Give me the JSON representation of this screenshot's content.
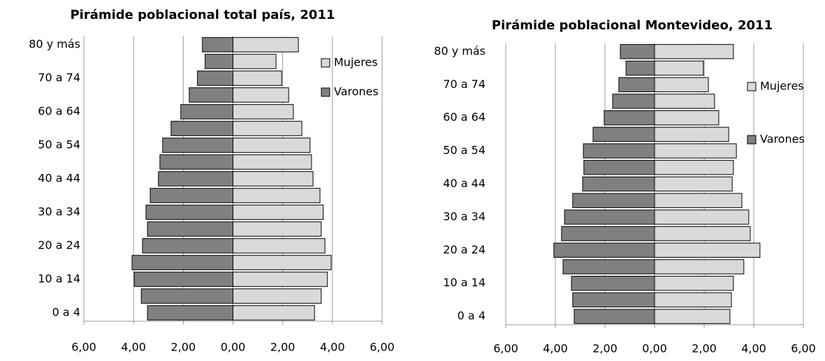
{
  "chart_data": [
    {
      "type": "pyramid",
      "title": "Pirámide poblacional total país, 2011",
      "categories": [
        "0 a 4",
        null,
        "10 a 14",
        null,
        "20 a 24",
        null,
        "30 a 34",
        null,
        "40 a 44",
        null,
        "50 a 54",
        null,
        "60 a 64",
        null,
        "70 a 74",
        null,
        "80 y más"
      ],
      "series": [
        {
          "name": "Mujeres",
          "color": "#d9d9d9",
          "values": [
            3.28,
            3.55,
            3.8,
            3.95,
            3.7,
            3.55,
            3.63,
            3.5,
            3.22,
            3.16,
            3.1,
            2.77,
            2.43,
            2.24,
            1.96,
            1.73,
            2.63
          ]
        },
        {
          "name": "Varones",
          "color": "#808080",
          "values": [
            -3.44,
            -3.69,
            -3.97,
            -4.06,
            -3.64,
            -3.44,
            -3.5,
            -3.33,
            -3.0,
            -2.94,
            -2.83,
            -2.49,
            -2.1,
            -1.76,
            -1.43,
            -1.12,
            -1.23
          ]
        }
      ],
      "xlim": [
        -6,
        6
      ],
      "xticks": [
        {
          "value": -6,
          "label": "6,00"
        },
        {
          "value": -4,
          "label": "4,00"
        },
        {
          "value": -2,
          "label": "2,00"
        },
        {
          "value": 0,
          "label": "0,00"
        },
        {
          "value": 2,
          "label": "2,00"
        },
        {
          "value": 4,
          "label": "4,00"
        },
        {
          "value": 6,
          "label": "6,00"
        }
      ],
      "grid": true,
      "legend": "right"
    },
    {
      "type": "pyramid",
      "title": "Pirámide poblacional Montevideo, 2011",
      "categories": [
        "0 a 4",
        null,
        "10 a 14",
        null,
        "20 a 24",
        null,
        "30 a 34",
        null,
        "40 a 44",
        null,
        "50 a 54",
        null,
        "60 a 64",
        null,
        "70 a 74",
        null,
        "80 y más"
      ],
      "series": [
        {
          "name": "Mujeres",
          "color": "#d9d9d9",
          "values": [
            3.04,
            3.1,
            3.18,
            3.6,
            4.25,
            3.86,
            3.8,
            3.52,
            3.13,
            3.18,
            3.3,
            2.99,
            2.59,
            2.42,
            2.17,
            1.97,
            3.18
          ]
        },
        {
          "name": "Varones",
          "color": "#808080",
          "values": [
            -3.24,
            -3.3,
            -3.35,
            -3.69,
            -4.06,
            -3.75,
            -3.63,
            -3.3,
            -2.9,
            -2.85,
            -2.87,
            -2.48,
            -2.03,
            -1.69,
            -1.44,
            -1.15,
            -1.38
          ]
        }
      ],
      "xlim": [
        -6,
        6
      ],
      "xticks": [
        {
          "value": -6,
          "label": "6,00"
        },
        {
          "value": -4,
          "label": "4,00"
        },
        {
          "value": -2,
          "label": "2,00"
        },
        {
          "value": 0,
          "label": "0,00"
        },
        {
          "value": 2,
          "label": "2,00"
        },
        {
          "value": 4,
          "label": "4,00"
        },
        {
          "value": 6,
          "label": "6,00"
        }
      ],
      "grid": true,
      "legend": "right"
    }
  ]
}
